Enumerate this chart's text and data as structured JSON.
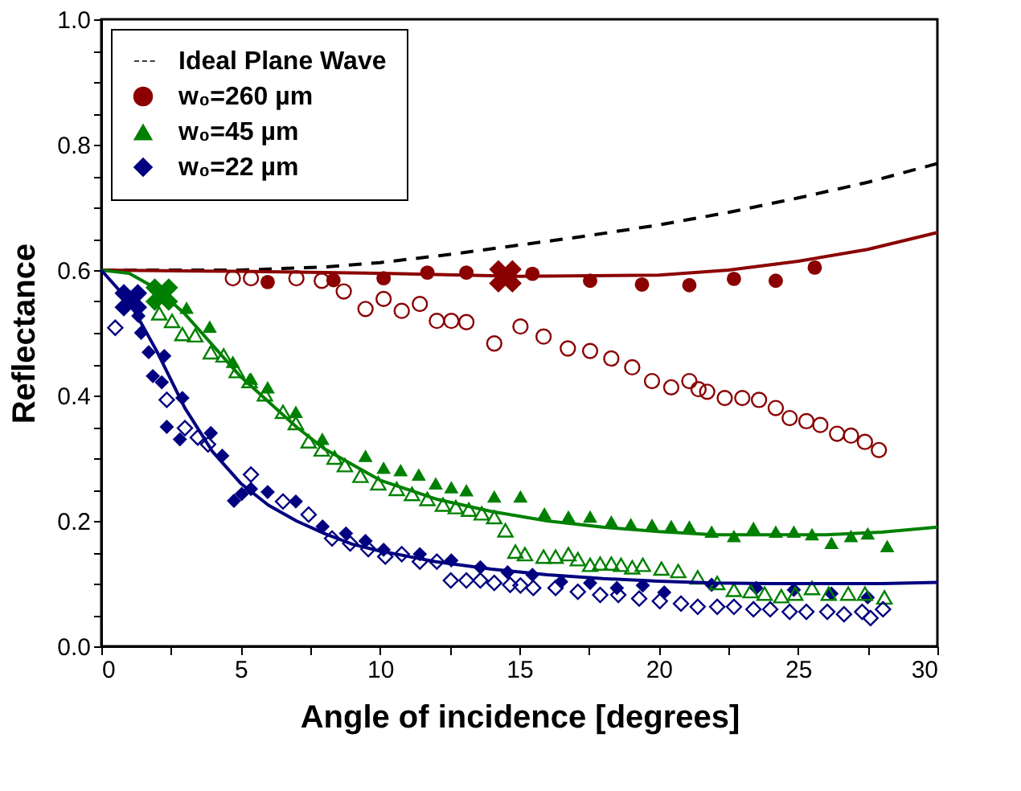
{
  "chart_data": {
    "type": "scatter",
    "xlabel": "Angle of incidence [degrees]",
    "ylabel": "Reflectance",
    "xlim": [
      0,
      30
    ],
    "ylim": [
      0,
      1.0
    ],
    "xticks": [
      0,
      {
        "value": 2.5,
        "label": null
      },
      5,
      {
        "value": 7.5,
        "label": null
      },
      10,
      {
        "value": 12.5,
        "label": null
      },
      15,
      {
        "value": 17.5,
        "label": null
      },
      20,
      {
        "value": 22.5,
        "label": null
      },
      25,
      {
        "value": 27.5,
        "label": null
      },
      30
    ],
    "yticks": [
      {
        "value": 0,
        "label": "0.0"
      },
      {
        "value": 0.05,
        "label": null
      },
      {
        "value": 0.1,
        "label": null
      },
      {
        "value": 0.15,
        "label": null
      },
      {
        "value": 0.2,
        "label": "0.2"
      },
      {
        "value": 0.25,
        "label": null
      },
      {
        "value": 0.3,
        "label": null
      },
      {
        "value": 0.35,
        "label": null
      },
      {
        "value": 0.4,
        "label": "0.4"
      },
      {
        "value": 0.45,
        "label": null
      },
      {
        "value": 0.5,
        "label": null
      },
      {
        "value": 0.55,
        "label": null
      },
      {
        "value": 0.6,
        "label": "0.6"
      },
      {
        "value": 0.65,
        "label": null
      },
      {
        "value": 0.7,
        "label": null
      },
      {
        "value": 0.75,
        "label": null
      },
      {
        "value": 0.8,
        "label": "0.8"
      },
      {
        "value": 0.85,
        "label": null
      },
      {
        "value": 0.9,
        "label": null
      },
      {
        "value": 0.95,
        "label": null
      },
      {
        "value": 1.0,
        "label": "1.0"
      }
    ],
    "grid": false,
    "legend": "top left",
    "series": [
      {
        "type": "line",
        "name": "Ideal Plane Wave",
        "color": "#000000",
        "line_style": "dashed",
        "marker": "none",
        "x": [
          0,
          5,
          8,
          10,
          12.5,
          15,
          17.5,
          20,
          22.5,
          25,
          27.5,
          30
        ],
        "values": [
          0.6,
          0.6,
          0.605,
          0.612,
          0.625,
          0.64,
          0.655,
          0.672,
          0.692,
          0.715,
          0.74,
          0.77
        ]
      },
      {
        "name": "w₀=260 µm",
        "color": "#8b0000",
        "marker": "circle",
        "x": [
          5.97,
          8.33,
          10.13,
          11.7,
          13.1,
          15.47,
          17.54,
          19.4,
          21.1,
          22.7,
          24.2,
          25.6
        ],
        "values": [
          0.581,
          0.584,
          0.587,
          0.596,
          0.596,
          0.594,
          0.583,
          0.577,
          0.576,
          0.586,
          0.583,
          0.604
        ]
      },
      {
        "name": "w₀=45 µm",
        "color": "#008000",
        "marker": "triangle",
        "x": [
          3.06,
          3.89,
          4.72,
          5.37,
          5.97,
          6.98,
          7.93,
          9.48,
          10.13,
          10.74,
          11.39,
          12.0,
          12.56,
          13.1,
          14.1,
          15.04,
          15.9,
          16.76,
          17.54,
          18.3,
          19.0,
          19.76,
          20.45,
          21.1,
          21.9,
          22.7,
          23.4,
          24.2,
          24.85,
          25.5,
          26.2,
          26.9,
          27.5,
          28.2
        ],
        "values": [
          0.54,
          0.51,
          0.454,
          0.427,
          0.413,
          0.374,
          0.331,
          0.304,
          0.285,
          0.281,
          0.274,
          0.26,
          0.254,
          0.249,
          0.239,
          0.239,
          0.212,
          0.207,
          0.207,
          0.199,
          0.195,
          0.194,
          0.192,
          0.191,
          0.183,
          0.176,
          0.189,
          0.183,
          0.183,
          0.179,
          0.165,
          0.176,
          0.18,
          0.16
        ]
      },
      {
        "name": "w₀=22 µm",
        "color": "#000080",
        "marker": "diamond",
        "x": [
          1.33,
          1.43,
          1.7,
          2.26,
          1.85,
          2.17,
          2.91,
          2.35,
          2.82,
          3.93,
          4.34,
          4.76,
          5.04,
          5.37,
          5.97,
          6.98,
          7.94,
          8.78,
          9.48,
          10.13,
          11.43,
          12.56,
          13.6,
          14.58,
          15.47,
          16.5,
          17.54,
          18.5,
          19.43,
          20.2,
          21.9,
          23.5,
          24.85,
          26.2,
          27.5
        ],
        "values": [
          0.527,
          0.5,
          0.469,
          0.463,
          0.431,
          0.421,
          0.396,
          0.35,
          0.33,
          0.34,
          0.304,
          0.232,
          0.243,
          0.251,
          0.246,
          0.231,
          0.191,
          0.18,
          0.168,
          0.154,
          0.147,
          0.137,
          0.126,
          0.118,
          0.114,
          0.103,
          0.101,
          0.093,
          0.097,
          0.086,
          0.098,
          0.093,
          0.09,
          0.084,
          0.078
        ]
      },
      {
        "color": "#8b0000",
        "marker": "circle",
        "x": [
          4.72,
          5.37,
          7.0,
          7.91,
          8.7,
          9.48,
          10.13,
          10.78,
          11.43,
          12.04,
          12.56,
          13.1,
          14.1,
          15.04,
          15.87,
          16.74,
          17.54,
          18.3,
          19.05,
          19.76,
          20.45,
          21.1,
          21.43,
          21.74,
          22.37,
          23.0,
          23.6,
          24.2,
          24.7,
          25.3,
          25.8,
          26.4,
          26.9,
          27.4,
          27.9
        ],
        "values": [
          0.587,
          0.587,
          0.587,
          0.583,
          0.566,
          0.538,
          0.554,
          0.535,
          0.546,
          0.519,
          0.519,
          0.517,
          0.483,
          0.51,
          0.494,
          0.475,
          0.471,
          0.459,
          0.445,
          0.423,
          0.413,
          0.423,
          0.41,
          0.406,
          0.396,
          0.396,
          0.393,
          0.38,
          0.364,
          0.359,
          0.353,
          0.339,
          0.336,
          0.326,
          0.313
        ]
      },
      {
        "color": "#008000",
        "marker": "triangle",
        "x": [
          2.08,
          2.54,
          2.91,
          3.37,
          3.93,
          4.39,
          4.86,
          5.32,
          5.87,
          6.52,
          6.98,
          7.44,
          7.91,
          8.37,
          8.74,
          9.3,
          9.94,
          10.6,
          11.15,
          11.7,
          12.26,
          12.72,
          13.19,
          13.65,
          14.1,
          14.5,
          14.86,
          15.2,
          15.87,
          16.3,
          16.76,
          17.1,
          17.54,
          17.9,
          18.3,
          18.65,
          19.05,
          19.43,
          20.1,
          20.7,
          21.4,
          22.1,
          22.7,
          23.3,
          23.8,
          24.4,
          24.9,
          25.5,
          26.1,
          26.8,
          27.4,
          28.1
        ],
        "values": [
          0.531,
          0.519,
          0.498,
          0.496,
          0.469,
          0.464,
          0.439,
          0.423,
          0.402,
          0.374,
          0.356,
          0.327,
          0.314,
          0.301,
          0.289,
          0.272,
          0.26,
          0.251,
          0.243,
          0.235,
          0.226,
          0.222,
          0.218,
          0.212,
          0.206,
          0.185,
          0.151,
          0.147,
          0.143,
          0.143,
          0.147,
          0.139,
          0.13,
          0.132,
          0.132,
          0.13,
          0.126,
          0.13,
          0.124,
          0.12,
          0.11,
          0.101,
          0.09,
          0.088,
          0.084,
          0.08,
          0.084,
          0.093,
          0.084,
          0.084,
          0.084,
          0.078
        ]
      },
      {
        "color": "#000080",
        "marker": "diamond",
        "x": [
          0.5,
          2.35,
          3.0,
          3.46,
          3.83,
          5.37,
          6.52,
          7.44,
          8.28,
          8.93,
          9.58,
          10.19,
          10.78,
          11.43,
          12.04,
          12.54,
          13.1,
          13.6,
          14.1,
          14.67,
          15.04,
          15.5,
          16.3,
          17.1,
          17.9,
          18.55,
          19.3,
          20.04,
          20.8,
          21.4,
          22.1,
          22.7,
          23.4,
          24.0,
          24.7,
          25.3,
          26.05,
          26.65,
          27.3,
          27.6,
          28.05
        ],
        "values": [
          0.508,
          0.393,
          0.348,
          0.333,
          0.322,
          0.274,
          0.231,
          0.21,
          0.172,
          0.164,
          0.155,
          0.143,
          0.147,
          0.135,
          0.135,
          0.105,
          0.105,
          0.105,
          0.101,
          0.098,
          0.097,
          0.093,
          0.093,
          0.087,
          0.082,
          0.082,
          0.076,
          0.072,
          0.068,
          0.063,
          0.063,
          0.063,
          0.059,
          0.059,
          0.055,
          0.055,
          0.055,
          0.051,
          0.055,
          0.045,
          0.059
        ]
      },
      {
        "type": "line",
        "color": "#8b0000",
        "line_style": "solid",
        "marker": "none",
        "x": [
          0,
          5,
          10,
          15,
          20,
          22.5,
          25,
          27.5,
          30
        ],
        "values": [
          0.6,
          0.598,
          0.595,
          0.59,
          0.592,
          0.6,
          0.614,
          0.633,
          0.66
        ]
      },
      {
        "type": "line",
        "color": "#008000",
        "line_style": "solid",
        "marker": "none",
        "x": [
          0,
          1,
          2,
          3,
          4,
          5,
          6,
          7,
          8,
          9,
          10,
          12,
          14,
          16,
          18,
          20,
          22,
          24,
          26,
          28,
          30
        ],
        "values": [
          0.6,
          0.595,
          0.57,
          0.53,
          0.48,
          0.43,
          0.39,
          0.35,
          0.315,
          0.29,
          0.265,
          0.235,
          0.215,
          0.2,
          0.19,
          0.183,
          0.178,
          0.178,
          0.178,
          0.182,
          0.19
        ]
      },
      {
        "type": "line",
        "color": "#000080",
        "line_style": "solid",
        "marker": "none",
        "x": [
          0,
          1,
          2,
          3,
          4,
          5,
          6,
          7,
          8,
          9,
          10,
          12,
          14,
          16,
          18,
          20,
          22,
          24,
          26,
          28,
          30
        ],
        "values": [
          0.6,
          0.55,
          0.47,
          0.38,
          0.31,
          0.26,
          0.225,
          0.2,
          0.18,
          0.163,
          0.152,
          0.135,
          0.123,
          0.114,
          0.108,
          0.104,
          0.101,
          0.1,
          0.1,
          0.1,
          0.102
        ]
      },
      {
        "color": "#8b0000",
        "marker": "cross",
        "x": [
          14.5
        ],
        "values": [
          0.59
        ]
      },
      {
        "color": "#008000",
        "marker": "cross",
        "x": [
          2.17
        ],
        "values": [
          0.561
        ]
      },
      {
        "color": "#000080",
        "marker": "cross",
        "x": [
          1.06
        ],
        "values": [
          0.552
        ]
      }
    ]
  }
}
